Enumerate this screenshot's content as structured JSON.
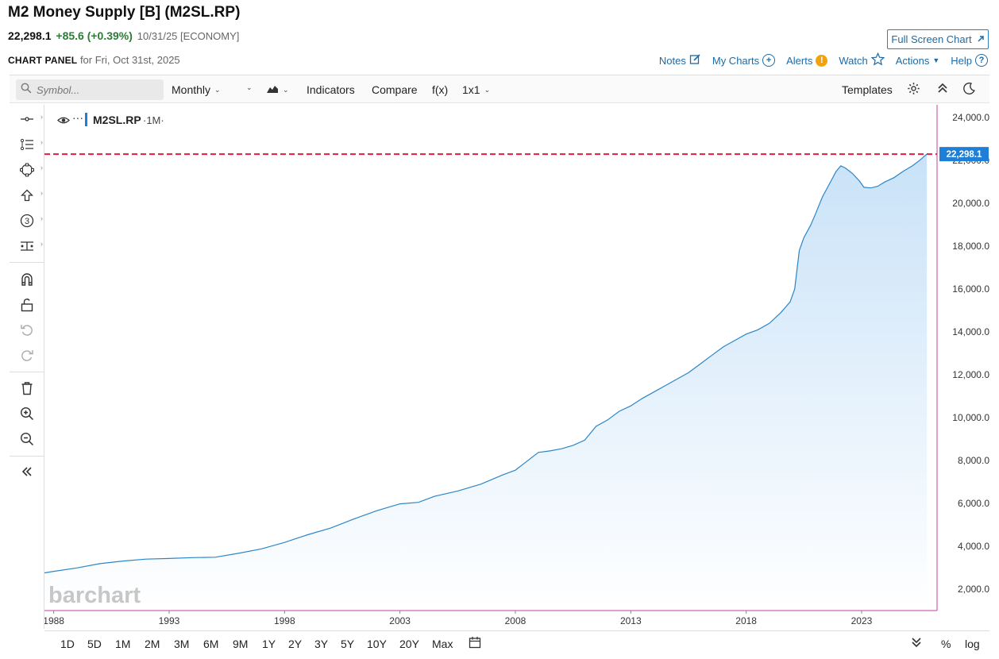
{
  "header": {
    "title": "M2 Money Supply [B] (M2SL.RP)",
    "price": "22,298.1",
    "change": "+85.6 (+0.39%)",
    "date_meta": "10/31/25 [ECONOMY]",
    "panel_label": "CHART PANEL",
    "panel_date": "for Fri, Oct 31st, 2025",
    "fullscreen_label": "Full Screen Chart",
    "links": {
      "notes": "Notes",
      "my_charts": "My Charts",
      "alerts": "Alerts",
      "watch": "Watch",
      "actions": "Actions",
      "help": "Help"
    }
  },
  "toolbar": {
    "symbol_placeholder": "Symbol...",
    "interval": "Monthly",
    "indicators": "Indicators",
    "compare": "Compare",
    "fx": "f(x)",
    "layout": "1x1",
    "templates": "Templates"
  },
  "legend": {
    "symbol": "M2SL.RP",
    "interval": "·1M·"
  },
  "watermark": "barchart",
  "colors": {
    "line": "#2b86c8",
    "fill_top": "#c9e2f8",
    "fill_bottom": "#ffffff",
    "last_price_line": "#e0203a",
    "price_tag": "#1f7fd6",
    "axis_border": "#c040a0"
  },
  "chart_data": {
    "type": "area",
    "title": "",
    "xlabel": "",
    "ylabel": "",
    "x_ticks": [
      "1988",
      "1993",
      "1998",
      "2003",
      "2008",
      "2013",
      "2018",
      "2023"
    ],
    "y_ticks": [
      "2,000.0",
      "4,000.0",
      "6,000.0",
      "8,000.0",
      "10,000.0",
      "12,000.0",
      "14,000.0",
      "16,000.0",
      "18,000.0",
      "20,000.0",
      "22,000.0",
      "24,000.0"
    ],
    "ylim": [
      1000,
      24600
    ],
    "xlim": [
      1987.6,
      2026.2
    ],
    "last_value_label": "22,298.1",
    "last_value": 22298.1,
    "series": [
      {
        "x": [
          1987.6,
          1988.0,
          1989.0,
          1990.0,
          1991.0,
          1992.0,
          1993.0,
          1994.0,
          1995.0,
          1996.0,
          1997.0,
          1998.0,
          1999.0,
          2000.0,
          2001.0,
          2002.0,
          2003.0,
          2003.8,
          2004.5,
          2005.5,
          2006.5,
          2007.5,
          2008.0,
          2008.6,
          2009.0,
          2009.5,
          2010.0,
          2010.5,
          2011.0,
          2011.5,
          2012.0,
          2012.5,
          2013.0,
          2013.5,
          2014.0,
          2014.5,
          2015.0,
          2015.5,
          2016.0,
          2016.5,
          2017.0,
          2017.5,
          2018.0,
          2018.5,
          2019.0,
          2019.5,
          2019.9,
          2020.1,
          2020.3,
          2020.5,
          2020.8,
          2021.0,
          2021.3,
          2021.6,
          2021.9,
          2022.1,
          2022.3,
          2022.6,
          2022.9,
          2023.1,
          2023.4,
          2023.7,
          2024.0,
          2024.4,
          2024.8,
          2025.2,
          2025.5,
          2025.83
        ],
        "values": [
          2760,
          2830,
          2990,
          3190,
          3310,
          3400,
          3430,
          3470,
          3490,
          3670,
          3880,
          4180,
          4540,
          4850,
          5270,
          5660,
          5980,
          6050,
          6330,
          6580,
          6900,
          7350,
          7550,
          8050,
          8380,
          8450,
          8550,
          8710,
          8950,
          9600,
          9900,
          10300,
          10550,
          10900,
          11200,
          11500,
          11800,
          12100,
          12500,
          12900,
          13300,
          13600,
          13900,
          14100,
          14400,
          14900,
          15400,
          16000,
          17800,
          18400,
          19000,
          19500,
          20300,
          20900,
          21500,
          21750,
          21650,
          21400,
          21050,
          20750,
          20720,
          20800,
          21000,
          21200,
          21500,
          21750,
          22000,
          22298
        ]
      }
    ],
    "grid": false,
    "legend_position": "top-left"
  },
  "bottom": {
    "ranges": [
      "1D",
      "5D",
      "1M",
      "2M",
      "3M",
      "6M",
      "9M",
      "1Y",
      "2Y",
      "3Y",
      "5Y",
      "10Y",
      "20Y",
      "Max"
    ],
    "pct": "%",
    "log": "log"
  }
}
